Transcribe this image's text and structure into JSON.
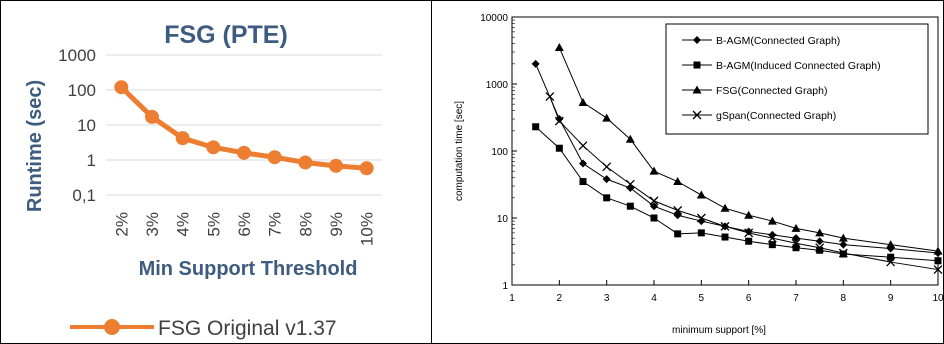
{
  "chart_data": [
    {
      "type": "line",
      "title": "FSG (PTE)",
      "xlabel": "Min Support Threshold",
      "ylabel": "Runtime (sec)",
      "y_scale": "log",
      "ylim": [
        0.1,
        1000
      ],
      "y_ticks": [
        "0,1",
        "1",
        "10",
        "100",
        "1000"
      ],
      "grid": "horizontal",
      "legend_position": "bottom",
      "categories": [
        "2%",
        "3%",
        "4%",
        "5%",
        "6%",
        "7%",
        "8%",
        "9%",
        "10%"
      ],
      "series": [
        {
          "name": "FSG Original v1.37",
          "color": "#ed7d31",
          "marker": "circle",
          "values": [
            120,
            17,
            4.2,
            2.3,
            1.6,
            1.2,
            0.85,
            0.68,
            0.58
          ]
        }
      ]
    },
    {
      "type": "line",
      "title": "",
      "xlabel": "minimum support [%]",
      "ylabel": "computation time [sec]",
      "y_scale": "log",
      "xlim": [
        1,
        10
      ],
      "ylim": [
        1,
        10000
      ],
      "x_ticks": [
        "1",
        "2",
        "3",
        "4",
        "5",
        "6",
        "7",
        "8",
        "9",
        "10"
      ],
      "y_ticks": [
        "1",
        "10",
        "100",
        "1000",
        "10000"
      ],
      "grid": "none",
      "legend_position": "top-right",
      "series": [
        {
          "name": "B-AGM(Connected Graph)",
          "marker": "diamond",
          "x": [
            1.5,
            2,
            2.5,
            3,
            3.5,
            4,
            4.5,
            5,
            5.5,
            6,
            6.5,
            7,
            7.5,
            8,
            9,
            10
          ],
          "y": [
            2000,
            300,
            65,
            38,
            28,
            15,
            11,
            9,
            7.5,
            6.3,
            5.6,
            5.0,
            4.5,
            4.0,
            3.5,
            3.0
          ]
        },
        {
          "name": "B-AGM(Induced Connected Graph)",
          "marker": "square",
          "x": [
            1.5,
            2,
            2.5,
            3,
            3.5,
            4,
            4.5,
            5,
            5.5,
            6,
            6.5,
            7,
            7.5,
            8,
            9,
            10
          ],
          "y": [
            230,
            110,
            35,
            20,
            15,
            10,
            5.8,
            6.0,
            5.2,
            4.5,
            4.0,
            3.6,
            3.3,
            2.9,
            2.6,
            2.3
          ]
        },
        {
          "name": "FSG(Connected Graph)",
          "marker": "triangle",
          "x": [
            2,
            2.5,
            3,
            3.5,
            4,
            4.5,
            5,
            5.5,
            6,
            6.5,
            7,
            7.5,
            8,
            9,
            10
          ],
          "y": [
            3500,
            530,
            310,
            150,
            50,
            35,
            22,
            14,
            11,
            9,
            7.0,
            6.0,
            5.0,
            4.0,
            3.2
          ]
        },
        {
          "name": "gSpan(Connected Graph)",
          "marker": "x",
          "x": [
            1.8,
            2,
            2.5,
            3,
            3.5,
            4,
            4.5,
            5,
            5.5,
            6,
            6.5,
            7,
            7.5,
            8,
            9,
            10
          ],
          "y": [
            650,
            280,
            120,
            58,
            32,
            18,
            13,
            10,
            7.5,
            6.0,
            5.0,
            4.2,
            3.6,
            3.0,
            2.2,
            1.7
          ]
        }
      ]
    }
  ]
}
